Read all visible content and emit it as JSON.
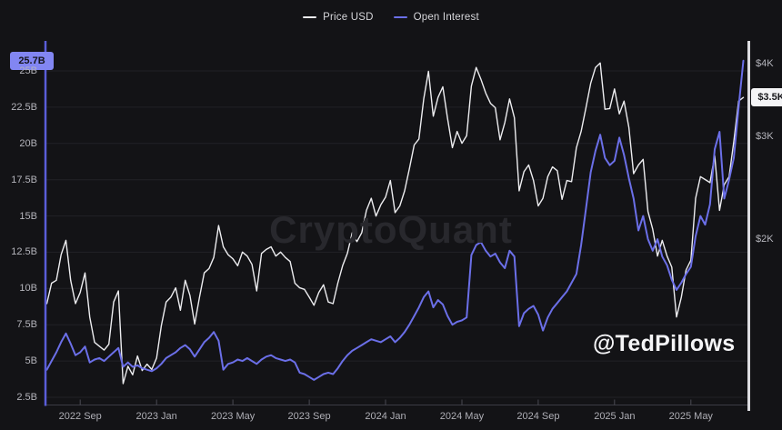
{
  "watermark": "CryptoQuant",
  "credit": "@TedPillows",
  "badges": {
    "oi_last": "25.7B",
    "price_last": "$3.5K"
  },
  "colors": {
    "background": "#131316",
    "grid": "#222227",
    "axis_left": "#5a5dd8",
    "axis_right": "#dcdce0",
    "axis_bottom": "#3c3c44",
    "price_line": "#ededf0",
    "oi_line": "#6b6fe8",
    "oi_badge_bg": "#8286f2",
    "oi_badge_text": "#15151d",
    "price_badge_bg": "#f4f4f6",
    "price_badge_text": "#17171b",
    "tick_text": "#b4b4bb"
  },
  "chart_data": {
    "type": "line",
    "title": "",
    "legend_position": "top-center",
    "grid": "horizontal",
    "x_range": [
      "2022 Jul",
      "2025 Jul"
    ],
    "x_ticks": [
      {
        "label": "2022 Sep",
        "index": 7
      },
      {
        "label": "2023 Jan",
        "index": 23
      },
      {
        "label": "2023 May",
        "index": 39
      },
      {
        "label": "2023 Sep",
        "index": 55
      },
      {
        "label": "2024 Jan",
        "index": 71
      },
      {
        "label": "2024 May",
        "index": 87
      },
      {
        "label": "2024 Sep",
        "index": 103
      },
      {
        "label": "2025 Jan",
        "index": 119
      },
      {
        "label": "2025 May",
        "index": 135
      }
    ],
    "left_axis": {
      "side": "left",
      "scale": "linear",
      "unit": "B USD",
      "ticks": [
        {
          "label": "25B",
          "value": 25
        },
        {
          "label": "22.5B",
          "value": 22.5
        },
        {
          "label": "20B",
          "value": 20
        },
        {
          "label": "17.5B",
          "value": 17.5
        },
        {
          "label": "15B",
          "value": 15
        },
        {
          "label": "12.5B",
          "value": 12.5
        },
        {
          "label": "10B",
          "value": 10
        },
        {
          "label": "7.5B",
          "value": 7.5
        },
        {
          "label": "5B",
          "value": 5
        },
        {
          "label": "2.5B",
          "value": 2.5
        }
      ]
    },
    "right_axis": {
      "side": "right",
      "scale": "log",
      "unit": "USD",
      "ticks": [
        {
          "label": "$4K",
          "value": 4000
        },
        {
          "label": "$3K",
          "value": 3000
        },
        {
          "label": "$2K",
          "value": 2000
        }
      ]
    },
    "series": [
      {
        "name": "Price USD",
        "axis": "right",
        "color": "#ededf0",
        "last_value_label": "$3.5K",
        "values": [
          1550,
          1680,
          1700,
          1880,
          1990,
          1700,
          1550,
          1620,
          1750,
          1470,
          1330,
          1310,
          1290,
          1320,
          1560,
          1630,
          1130,
          1210,
          1170,
          1260,
          1190,
          1220,
          1195,
          1250,
          1420,
          1560,
          1590,
          1650,
          1510,
          1700,
          1600,
          1430,
          1590,
          1750,
          1780,
          1860,
          2110,
          1940,
          1880,
          1850,
          1800,
          1900,
          1870,
          1810,
          1630,
          1890,
          1920,
          1940,
          1870,
          1900,
          1860,
          1830,
          1680,
          1650,
          1640,
          1590,
          1540,
          1620,
          1670,
          1560,
          1550,
          1680,
          1800,
          1890,
          2050,
          1980,
          2050,
          2240,
          2350,
          2190,
          2290,
          2360,
          2520,
          2220,
          2280,
          2420,
          2640,
          2900,
          2970,
          3480,
          3880,
          3250,
          3500,
          3650,
          3220,
          2870,
          3060,
          2920,
          3010,
          3660,
          3940,
          3760,
          3560,
          3420,
          3360,
          2960,
          3170,
          3480,
          3230,
          2420,
          2610,
          2680,
          2520,
          2280,
          2350,
          2560,
          2660,
          2620,
          2340,
          2520,
          2510,
          2870,
          3060,
          3360,
          3700,
          3940,
          4010,
          3340,
          3350,
          3620,
          3280,
          3450,
          3110,
          2590,
          2680,
          2740,
          2230,
          2080,
          1870,
          1990,
          1870,
          1790,
          1470,
          1590,
          1770,
          1840,
          2350,
          2560,
          2530,
          2500,
          2780,
          2240,
          2480,
          2560,
          2940,
          3450,
          3500
        ]
      },
      {
        "name": "Open Interest",
        "axis": "left",
        "color": "#6b6fe8",
        "last_value_label": "25.7B",
        "values": [
          4.4,
          5.0,
          5.6,
          6.3,
          6.9,
          6.2,
          5.4,
          5.6,
          6.0,
          4.9,
          5.1,
          5.2,
          5.0,
          5.3,
          5.6,
          5.9,
          4.6,
          4.9,
          4.6,
          4.7,
          4.5,
          4.4,
          4.3,
          4.5,
          4.8,
          5.2,
          5.4,
          5.6,
          5.9,
          6.1,
          5.8,
          5.3,
          5.8,
          6.3,
          6.6,
          7.0,
          6.4,
          4.4,
          4.8,
          4.9,
          5.1,
          5.0,
          5.2,
          5.0,
          4.8,
          5.1,
          5.3,
          5.4,
          5.2,
          5.1,
          5.0,
          5.1,
          4.9,
          4.2,
          4.1,
          3.9,
          3.7,
          3.9,
          4.1,
          4.2,
          4.1,
          4.5,
          5.0,
          5.4,
          5.7,
          5.9,
          6.1,
          6.3,
          6.5,
          6.4,
          6.3,
          6.5,
          6.7,
          6.3,
          6.6,
          7.0,
          7.5,
          8.1,
          8.7,
          9.4,
          9.8,
          8.7,
          9.2,
          8.9,
          8.1,
          7.5,
          7.7,
          7.8,
          8.0,
          12.3,
          13.0,
          13.2,
          12.6,
          12.2,
          12.4,
          11.8,
          11.4,
          12.6,
          12.2,
          7.4,
          8.3,
          8.6,
          8.8,
          8.2,
          7.1,
          8.0,
          8.6,
          9.0,
          9.4,
          9.8,
          10.4,
          11.0,
          13.0,
          15.5,
          18.0,
          19.5,
          20.6,
          19.0,
          18.5,
          18.8,
          20.4,
          19.2,
          17.6,
          16.2,
          14.0,
          15.0,
          13.4,
          12.6,
          13.4,
          12.2,
          11.6,
          10.6,
          9.9,
          10.4,
          11.0,
          11.5,
          13.6,
          15.0,
          14.4,
          15.8,
          19.6,
          20.8,
          16.2,
          17.5,
          19.0,
          22.5,
          25.7
        ]
      }
    ]
  }
}
